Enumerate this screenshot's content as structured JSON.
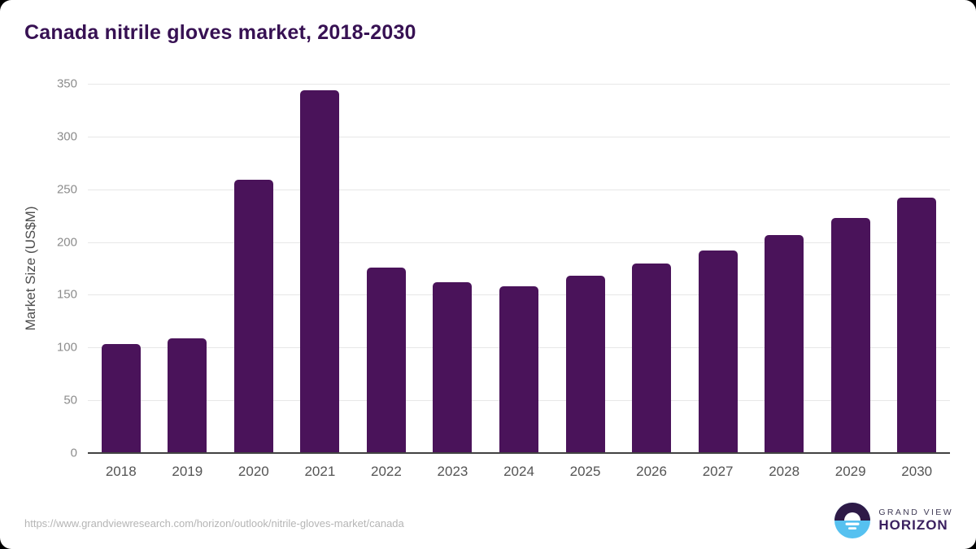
{
  "page": {
    "title": "Canada nitrile gloves market, 2018-2030"
  },
  "chart_data": {
    "type": "bar",
    "title": "Canada nitrile gloves market, 2018-2030",
    "categories": [
      "2018",
      "2019",
      "2020",
      "2021",
      "2022",
      "2023",
      "2024",
      "2025",
      "2026",
      "2027",
      "2028",
      "2029",
      "2030"
    ],
    "values": [
      103,
      109,
      259,
      344,
      176,
      162,
      158,
      168,
      180,
      192,
      207,
      223,
      242
    ],
    "xlabel": "",
    "ylabel": "Market Size (US$M)",
    "ylim": [
      0,
      350
    ],
    "ytick_step": 50,
    "grid": true,
    "legend": "none",
    "bar_color": "#4a135a"
  },
  "footer": {
    "source_url": "https://www.grandviewresearch.com/horizon/outlook/nitrile-gloves-market/canada",
    "logo": {
      "line1": "GRAND VIEW",
      "line2": "HORIZON"
    }
  },
  "colors": {
    "title": "#371153",
    "bar": "#4a135a",
    "gridline": "#e7e7e7",
    "axis_line": "#424242",
    "ytick_label": "#8c8c8c",
    "xtick_label": "#545454",
    "source_url": "#b5b5b5",
    "logo_blue": "#56c1f0",
    "logo_dark": "#2e1a47"
  }
}
